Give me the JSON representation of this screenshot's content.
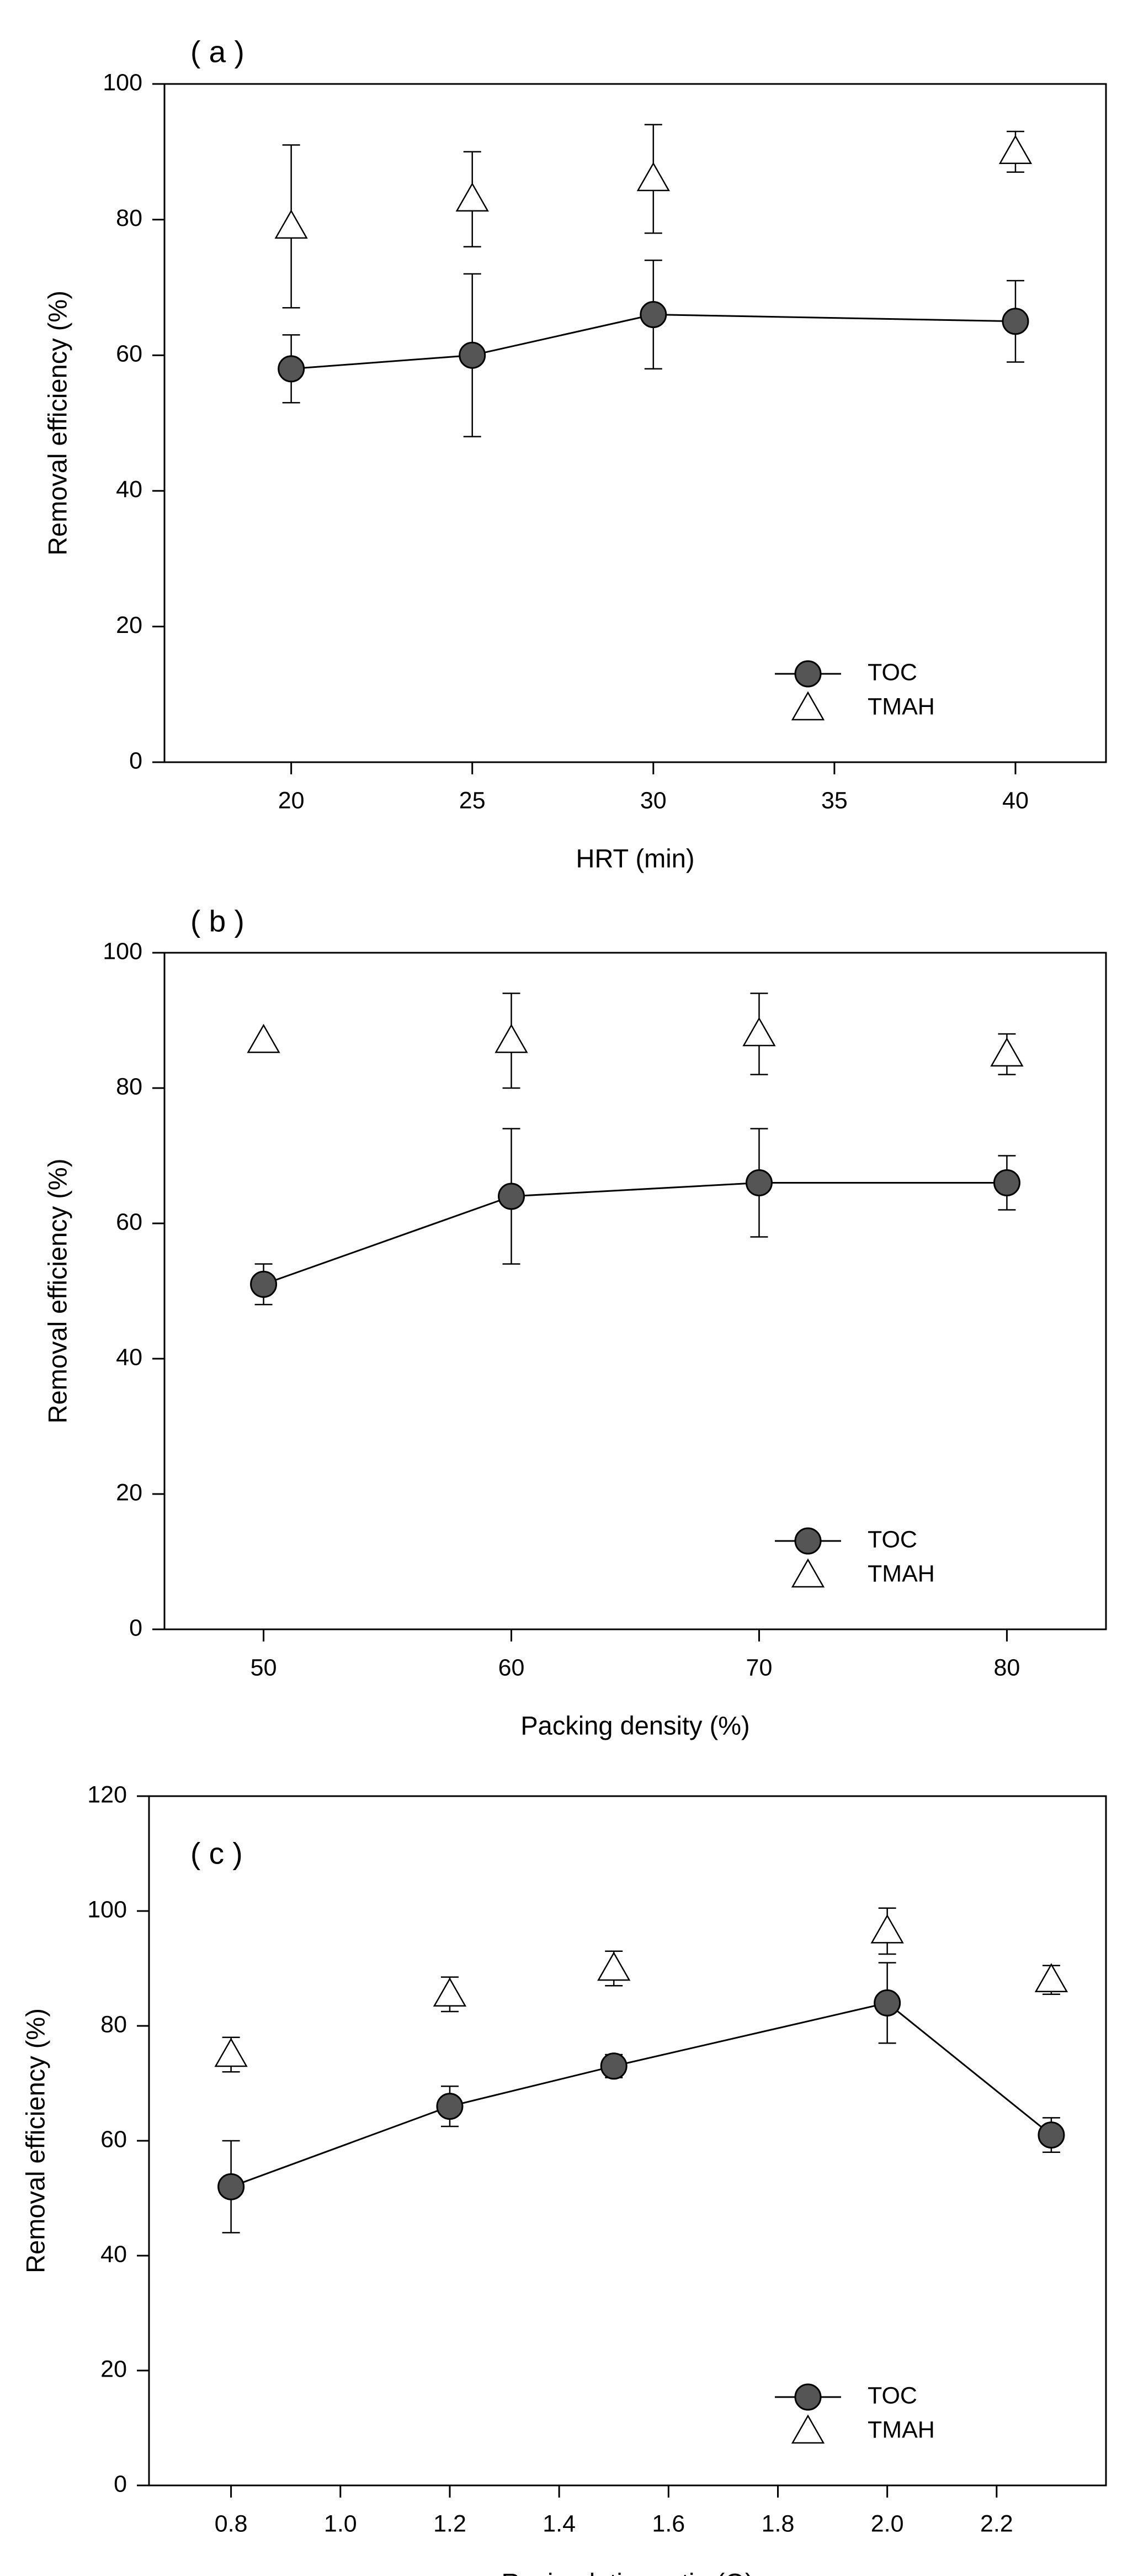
{
  "figure": {
    "background": "#ffffff"
  },
  "chart_data": [
    {
      "panel_label": "( a )",
      "type": "line",
      "xlabel": "HRT (min)",
      "ylabel": "Removal efficiency (%)",
      "xlim": [
        16.5,
        42.5
      ],
      "ylim": [
        0,
        100
      ],
      "xticks": [
        20,
        25,
        30,
        35,
        40
      ],
      "xtick_labels": [
        "20",
        "25",
        "30",
        "35",
        "40"
      ],
      "yticks": [
        0,
        20,
        40,
        60,
        80,
        100
      ],
      "ytick_labels": [
        "0",
        "20",
        "40",
        "60",
        "80",
        "100"
      ],
      "grid": false,
      "legend_position": "bottom-right",
      "series": [
        {
          "name": "TOC",
          "marker": "filled-circle",
          "line": true,
          "x": [
            20,
            25,
            30,
            40
          ],
          "values": [
            58,
            60,
            66,
            65
          ],
          "err_low": [
            5,
            12,
            8,
            6
          ],
          "err_high": [
            5,
            12,
            8,
            6
          ]
        },
        {
          "name": "TMAH",
          "marker": "open-triangle",
          "line": false,
          "x": [
            20,
            25,
            30,
            40
          ],
          "values": [
            79,
            83,
            86,
            90
          ],
          "err_low": [
            12,
            7,
            8,
            3
          ],
          "err_high": [
            12,
            7,
            8,
            3
          ]
        }
      ]
    },
    {
      "panel_label": "( b )",
      "type": "line",
      "xlabel": "Packing density (%)",
      "ylabel": "Removal efficiency (%)",
      "xlim": [
        46,
        84
      ],
      "ylim": [
        0,
        100
      ],
      "xticks": [
        50,
        60,
        70,
        80
      ],
      "xtick_labels": [
        "50",
        "60",
        "70",
        "80"
      ],
      "yticks": [
        0,
        20,
        40,
        60,
        80,
        100
      ],
      "ytick_labels": [
        "0",
        "20",
        "40",
        "60",
        "80",
        "100"
      ],
      "grid": false,
      "legend_position": "bottom-right",
      "series": [
        {
          "name": "TOC",
          "marker": "filled-circle",
          "line": true,
          "x": [
            50,
            60,
            70,
            80
          ],
          "values": [
            51,
            64,
            66,
            66
          ],
          "err_low": [
            3,
            10,
            8,
            4
          ],
          "err_high": [
            3,
            10,
            8,
            4
          ]
        },
        {
          "name": "TMAH",
          "marker": "open-triangle",
          "line": false,
          "x": [
            50,
            60,
            70,
            80
          ],
          "values": [
            87,
            87,
            88,
            85
          ],
          "err_low": [
            0,
            7,
            6,
            3
          ],
          "err_high": [
            0,
            7,
            6,
            3
          ]
        }
      ]
    },
    {
      "panel_label": "( c )",
      "type": "line",
      "xlabel": "Recirculation ratio (Q)",
      "ylabel": "Removal efficiency (%)",
      "xlim": [
        0.65,
        2.4
      ],
      "ylim": [
        0,
        120
      ],
      "xticks": [
        0.8,
        1.0,
        1.2,
        1.4,
        1.6,
        1.8,
        2.0,
        2.2
      ],
      "xtick_labels": [
        "0.8",
        "1.0",
        "1.2",
        "1.4",
        "1.6",
        "1.8",
        "2.0",
        "2.2"
      ],
      "yticks": [
        0,
        20,
        40,
        60,
        80,
        100,
        120
      ],
      "ytick_labels": [
        "0",
        "20",
        "40",
        "60",
        "80",
        "100",
        "120"
      ],
      "grid": false,
      "legend_position": "bottom-right",
      "series": [
        {
          "name": "TOC",
          "marker": "filled-circle",
          "line": true,
          "x": [
            0.8,
            1.2,
            1.5,
            2.0,
            2.3
          ],
          "values": [
            52,
            66,
            73,
            84,
            61
          ],
          "err_low": [
            8,
            3.5,
            2,
            7,
            3
          ],
          "err_high": [
            8,
            3.5,
            2,
            7,
            3
          ]
        },
        {
          "name": "TMAH",
          "marker": "open-triangle",
          "line": false,
          "x": [
            0.8,
            1.2,
            1.5,
            2.0,
            2.3
          ],
          "values": [
            75,
            85.5,
            90,
            96.5,
            88
          ],
          "err_low": [
            3,
            3,
            3,
            4,
            2.5
          ],
          "err_high": [
            3,
            3,
            3,
            4,
            2.5
          ]
        }
      ]
    }
  ]
}
